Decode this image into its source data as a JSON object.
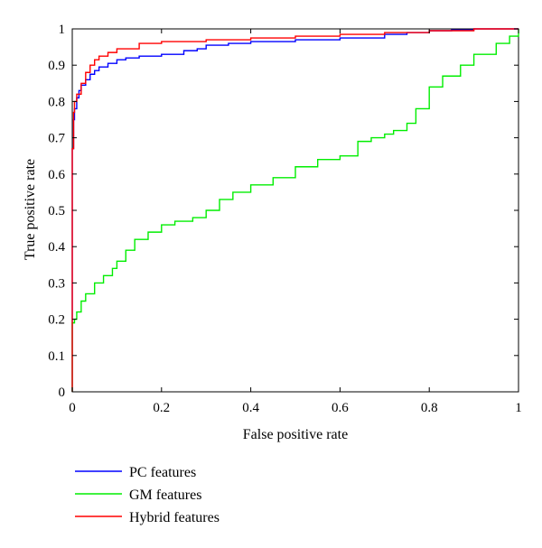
{
  "chart_data": {
    "type": "line",
    "title": "",
    "xlabel": "False positive rate",
    "ylabel": "True positive rate",
    "xlim": [
      0,
      1
    ],
    "ylim": [
      0,
      1
    ],
    "xticks": [
      0,
      0.2,
      0.4,
      0.6,
      0.8,
      1
    ],
    "xtick_labels": [
      "0",
      "0.2",
      "0.4",
      "0.6",
      "0.8",
      "1"
    ],
    "yticks": [
      0,
      0.1,
      0.2,
      0.3,
      0.4,
      0.5,
      0.6,
      0.7,
      0.8,
      0.9,
      1
    ],
    "ytick_labels": [
      "0",
      "0.1",
      "0.2",
      "0.3",
      "0.4",
      "0.5",
      "0.6",
      "0.7",
      "0.8",
      "0.9",
      "1"
    ],
    "grid": false,
    "legend_position": "below-left",
    "series": [
      {
        "name": "PC features",
        "color": "#0000ff",
        "x": [
          0,
          0,
          0.003,
          0.005,
          0.01,
          0.015,
          0.02,
          0.03,
          0.04,
          0.05,
          0.06,
          0.08,
          0.1,
          0.12,
          0.15,
          0.2,
          0.25,
          0.28,
          0.3,
          0.35,
          0.4,
          0.5,
          0.6,
          0.7,
          0.75,
          0.8,
          0.85,
          0.9,
          1
        ],
        "y": [
          0,
          0.67,
          0.75,
          0.78,
          0.81,
          0.83,
          0.845,
          0.86,
          0.875,
          0.885,
          0.895,
          0.905,
          0.915,
          0.92,
          0.925,
          0.93,
          0.94,
          0.945,
          0.955,
          0.96,
          0.965,
          0.97,
          0.975,
          0.985,
          0.99,
          0.995,
          0.997,
          1,
          1
        ]
      },
      {
        "name": "GM features",
        "color": "#00ee00",
        "x": [
          0,
          0,
          0.005,
          0.01,
          0.02,
          0.03,
          0.05,
          0.07,
          0.09,
          0.1,
          0.12,
          0.14,
          0.17,
          0.2,
          0.23,
          0.27,
          0.3,
          0.33,
          0.36,
          0.4,
          0.45,
          0.5,
          0.55,
          0.6,
          0.64,
          0.67,
          0.7,
          0.72,
          0.75,
          0.77,
          0.8,
          0.83,
          0.87,
          0.9,
          0.95,
          0.98,
          1
        ],
        "y": [
          0,
          0.19,
          0.2,
          0.22,
          0.25,
          0.27,
          0.3,
          0.32,
          0.34,
          0.36,
          0.39,
          0.42,
          0.44,
          0.46,
          0.47,
          0.48,
          0.5,
          0.53,
          0.55,
          0.57,
          0.59,
          0.62,
          0.64,
          0.65,
          0.69,
          0.7,
          0.71,
          0.72,
          0.74,
          0.78,
          0.84,
          0.87,
          0.9,
          0.93,
          0.96,
          0.98,
          1
        ]
      },
      {
        "name": "Hybrid features",
        "color": "#ff0000",
        "x": [
          0,
          0,
          0.003,
          0.005,
          0.01,
          0.02,
          0.03,
          0.04,
          0.05,
          0.06,
          0.08,
          0.1,
          0.15,
          0.2,
          0.3,
          0.4,
          0.5,
          0.6,
          0.7,
          0.8,
          0.9,
          1
        ],
        "y": [
          0,
          0.67,
          0.77,
          0.8,
          0.82,
          0.85,
          0.88,
          0.9,
          0.915,
          0.925,
          0.935,
          0.945,
          0.96,
          0.965,
          0.97,
          0.975,
          0.98,
          0.985,
          0.99,
          0.995,
          1,
          1
        ]
      }
    ]
  }
}
